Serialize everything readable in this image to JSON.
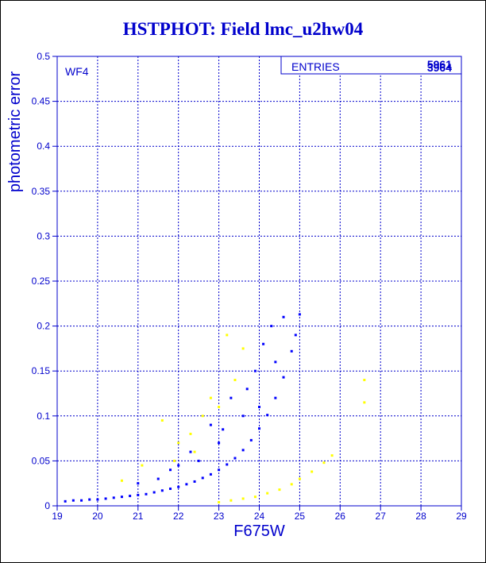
{
  "colors": {
    "title": "#0000cc",
    "axis": "#0000cc",
    "primary": "#0000ff",
    "secondary": "#ffff00",
    "frame": "#000000"
  },
  "chart_data": {
    "type": "scatter",
    "title": "HSTPHOT: Field lmc_u2hw04",
    "xlabel": "F675W",
    "ylabel": "photometric error",
    "xlim": [
      19,
      29
    ],
    "ylim": [
      0,
      0.5
    ],
    "xticks": [
      "19",
      "20",
      "21",
      "22",
      "23",
      "24",
      "25",
      "26",
      "27",
      "28",
      "29"
    ],
    "yticks": [
      "0",
      "0.05",
      "0.1",
      "0.15",
      "0.2",
      "0.25",
      "0.3",
      "0.35",
      "0.4",
      "0.45",
      "0.5"
    ],
    "grid": true,
    "panel_label": "WF4",
    "stats_box": {
      "label": "ENTRIES",
      "values": [
        "5961",
        "3964"
      ]
    },
    "series": [
      {
        "color": "#0000ff",
        "points": [
          [
            19.2,
            0.005
          ],
          [
            19.4,
            0.006
          ],
          [
            19.6,
            0.006
          ],
          [
            19.8,
            0.007
          ],
          [
            20.0,
            0.007
          ],
          [
            20.2,
            0.008
          ],
          [
            20.4,
            0.009
          ],
          [
            20.6,
            0.01
          ],
          [
            20.8,
            0.011
          ],
          [
            21.0,
            0.012
          ],
          [
            21.2,
            0.013
          ],
          [
            21.4,
            0.015
          ],
          [
            21.6,
            0.017
          ],
          [
            21.8,
            0.019
          ],
          [
            22.0,
            0.021
          ],
          [
            22.2,
            0.024
          ],
          [
            22.4,
            0.027
          ],
          [
            22.6,
            0.031
          ],
          [
            22.8,
            0.035
          ],
          [
            23.0,
            0.04
          ],
          [
            23.2,
            0.046
          ],
          [
            23.4,
            0.053
          ],
          [
            23.6,
            0.062
          ],
          [
            23.8,
            0.073
          ],
          [
            24.0,
            0.086
          ],
          [
            24.2,
            0.101
          ],
          [
            24.4,
            0.12
          ],
          [
            24.6,
            0.143
          ],
          [
            24.8,
            0.172
          ],
          [
            24.9,
            0.19
          ],
          [
            25.0,
            0.213
          ],
          [
            22.5,
            0.05
          ],
          [
            23.0,
            0.07
          ],
          [
            23.3,
            0.12
          ],
          [
            23.6,
            0.1
          ],
          [
            23.9,
            0.15
          ],
          [
            24.1,
            0.18
          ],
          [
            24.3,
            0.2
          ],
          [
            24.6,
            0.21
          ],
          [
            22.0,
            0.045
          ],
          [
            21.5,
            0.03
          ],
          [
            21.0,
            0.025
          ],
          [
            22.8,
            0.09
          ],
          [
            23.1,
            0.085
          ],
          [
            24.0,
            0.11
          ],
          [
            24.4,
            0.16
          ],
          [
            23.7,
            0.13
          ],
          [
            22.3,
            0.06
          ],
          [
            21.8,
            0.04
          ]
        ]
      },
      {
        "color": "#ffff00",
        "points": [
          [
            23.0,
            0.004
          ],
          [
            23.3,
            0.006
          ],
          [
            23.6,
            0.008
          ],
          [
            23.9,
            0.01
          ],
          [
            24.2,
            0.014
          ],
          [
            24.5,
            0.018
          ],
          [
            24.8,
            0.024
          ],
          [
            25.0,
            0.03
          ],
          [
            25.3,
            0.038
          ],
          [
            25.6,
            0.048
          ],
          [
            25.8,
            0.056
          ],
          [
            20.6,
            0.028
          ],
          [
            21.1,
            0.045
          ],
          [
            21.6,
            0.095
          ],
          [
            22.0,
            0.07
          ],
          [
            22.3,
            0.08
          ],
          [
            22.6,
            0.1
          ],
          [
            23.2,
            0.19
          ],
          [
            23.4,
            0.14
          ],
          [
            23.6,
            0.175
          ],
          [
            22.8,
            0.12
          ],
          [
            26.6,
            0.115
          ],
          [
            26.6,
            0.14
          ],
          [
            22.4,
            0.06
          ],
          [
            21.9,
            0.05
          ],
          [
            23.0,
            0.11
          ]
        ]
      }
    ]
  }
}
